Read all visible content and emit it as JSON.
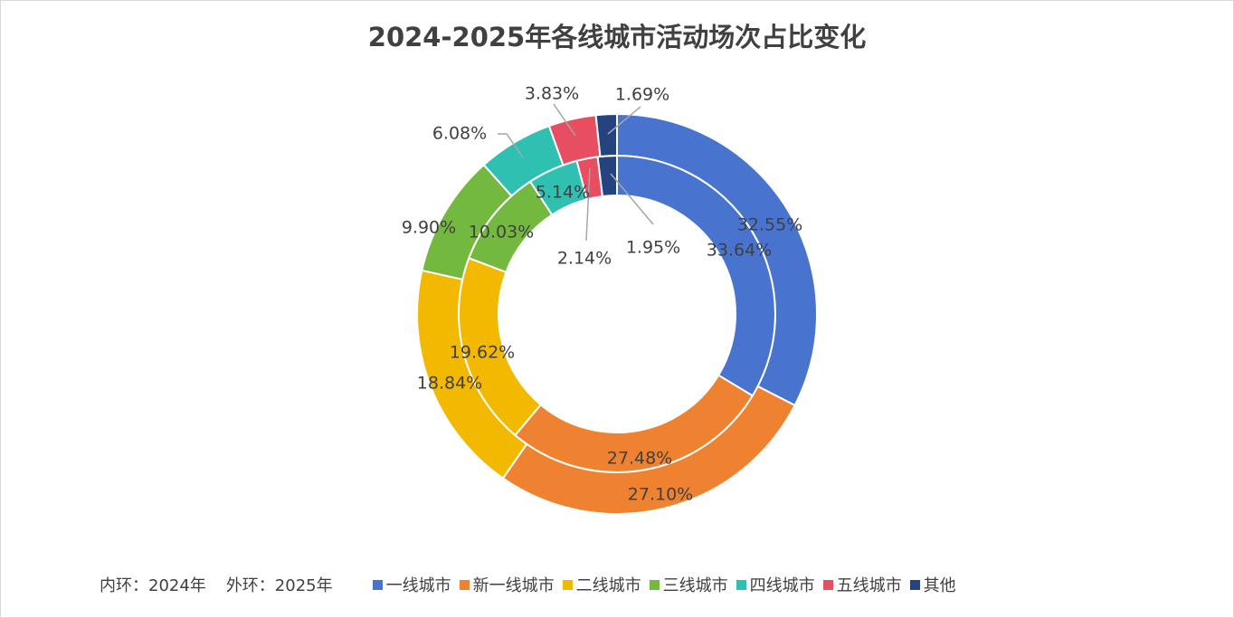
{
  "chart_data": {
    "type": "pie",
    "subtype": "doughnut",
    "title": "2024-2025年各线城市活动场次占比变化",
    "categories": [
      "一线城市",
      "新一线城市",
      "二线城市",
      "三线城市",
      "四线城市",
      "五线城市",
      "其他"
    ],
    "colors": [
      "#4874CF",
      "#EF8230",
      "#F3B800",
      "#73B940",
      "#2FC0B2",
      "#E84E61",
      "#24437F"
    ],
    "series": [
      {
        "name": "2024",
        "ring": "inner",
        "values": [
          33.64,
          27.48,
          19.62,
          10.03,
          5.14,
          2.14,
          1.95
        ],
        "labels": [
          "33.64%",
          "27.48%",
          "19.62%",
          "10.03%",
          "5.14%",
          "2.14%",
          "1.95%"
        ]
      },
      {
        "name": "2025",
        "ring": "outer",
        "values": [
          32.55,
          27.1,
          18.84,
          9.9,
          6.08,
          3.83,
          1.69
        ],
        "labels": [
          "32.55%",
          "27.10%",
          "18.84%",
          "9.90%",
          "6.08%",
          "3.83%",
          "1.69%"
        ]
      }
    ],
    "ring_note": [
      "内环：2024年",
      "外环：2025年"
    ],
    "legend_position": "bottom"
  }
}
